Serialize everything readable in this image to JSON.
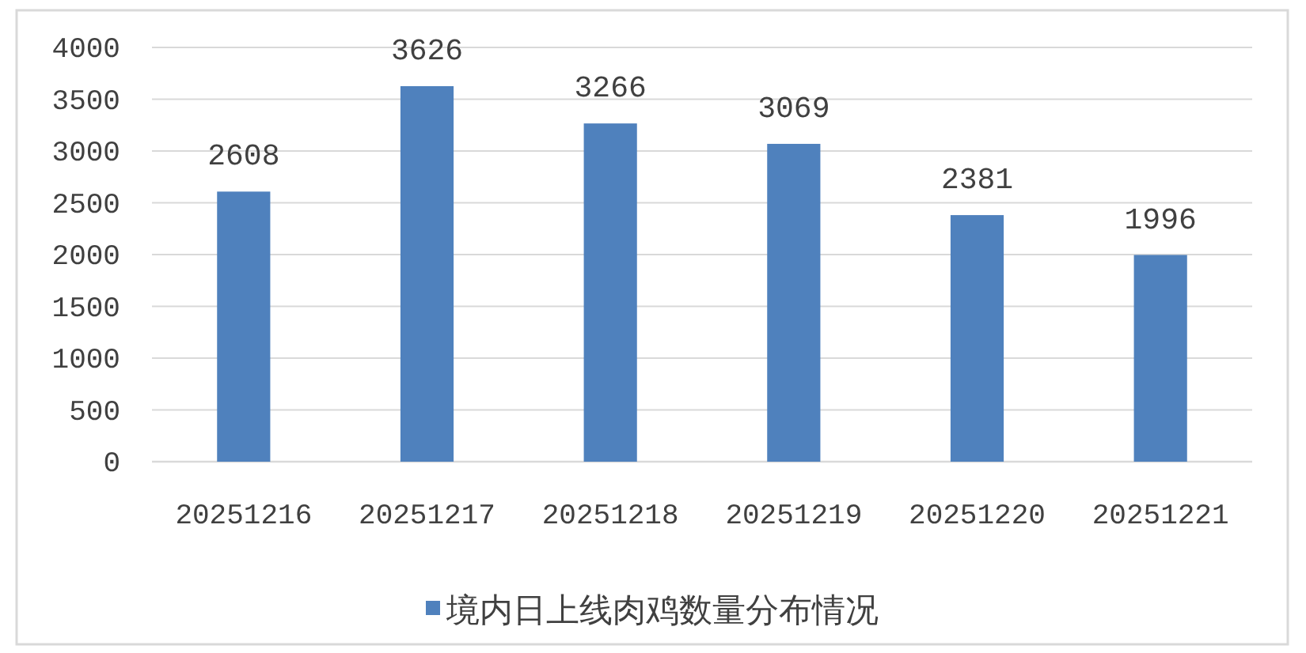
{
  "chart_data": {
    "type": "bar",
    "categories": [
      "20251216",
      "20251217",
      "20251218",
      "20251219",
      "20251220",
      "20251221"
    ],
    "series": [
      {
        "name": "境内日上线肉鸡数量分布情况",
        "color": "#4f81bd",
        "values": [
          2608,
          3626,
          3266,
          3069,
          2381,
          1996
        ]
      }
    ],
    "ylim": [
      0,
      4000
    ],
    "yticks": [
      0,
      500,
      1000,
      1500,
      2000,
      2500,
      3000,
      3500,
      4000
    ],
    "grid": "y",
    "legend": "bottom",
    "data_labels": true
  }
}
